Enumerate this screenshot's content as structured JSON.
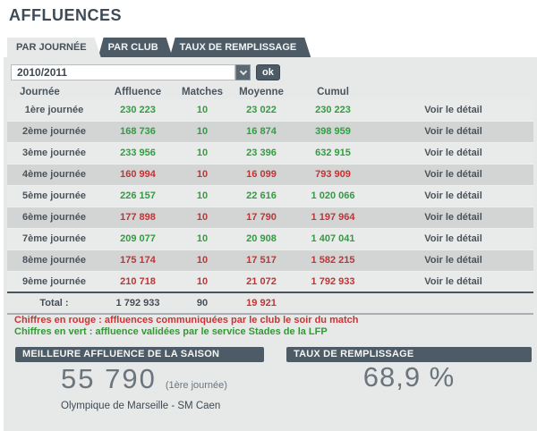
{
  "page": {
    "title": "AFFLUENCES"
  },
  "tabs": [
    {
      "label": "PAR JOURNÉE",
      "active": true
    },
    {
      "label": "PAR CLUB",
      "active": false
    },
    {
      "label": "TAUX DE REMPLISSAGE",
      "active": false
    }
  ],
  "filter": {
    "season_value": "2010/2011",
    "ok_label": "ok"
  },
  "table": {
    "headers": [
      "Journée",
      "Affluence",
      "Matches",
      "Moyenne",
      "Cumul"
    ],
    "detail_label": "Voir le détail",
    "rows": [
      {
        "journee": "1ère journée",
        "affluence": "230 223",
        "matches": "10",
        "moyenne": "23 022",
        "cumul": "230 223",
        "color": "green"
      },
      {
        "journee": "2ème journée",
        "affluence": "168 736",
        "matches": "10",
        "moyenne": "16 874",
        "cumul": "398 959",
        "color": "green"
      },
      {
        "journee": "3ème journée",
        "affluence": "233 956",
        "matches": "10",
        "moyenne": "23 396",
        "cumul": "632 915",
        "color": "green"
      },
      {
        "journee": "4ème journée",
        "affluence": "160 994",
        "matches": "10",
        "moyenne": "16 099",
        "cumul": "793 909",
        "color": "red"
      },
      {
        "journee": "5ème journée",
        "affluence": "226 157",
        "matches": "10",
        "moyenne": "22 616",
        "cumul": "1 020 066",
        "color": "green"
      },
      {
        "journee": "6ème journée",
        "affluence": "177 898",
        "matches": "10",
        "moyenne": "17 790",
        "cumul": "1 197 964",
        "color": "red"
      },
      {
        "journee": "7ème journée",
        "affluence": "209 077",
        "matches": "10",
        "moyenne": "20 908",
        "cumul": "1 407 041",
        "color": "green"
      },
      {
        "journee": "8ème journée",
        "affluence": "175 174",
        "matches": "10",
        "moyenne": "17 517",
        "cumul": "1 582 215",
        "color": "red"
      },
      {
        "journee": "9ème journée",
        "affluence": "210 718",
        "matches": "10",
        "moyenne": "21 072",
        "cumul": "1 792 933",
        "color": "red"
      }
    ],
    "total": {
      "label": "Total :",
      "affluence": "1 792 933",
      "matches": "90",
      "moyenne": "19 921",
      "moyenne_color": "red"
    }
  },
  "legend": {
    "red_note": "Chiffres en rouge : affluences communiquées par le club le soir du match",
    "green_note": "Chiffres en vert : affluence validées par le service Stades de la LFP"
  },
  "best_attendance": {
    "header": "MEILLEURE AFFLUENCE DE LA SAISON",
    "value": "55 790",
    "note": "(1ère journée)",
    "match": "Olympique de Marseille - SM Caen"
  },
  "fill_rate": {
    "header": "TAUX DE REMPLISSAGE",
    "value": "68,9 %"
  },
  "colors": {
    "accent_slate": "#4d5b66",
    "green": "#2f9e3f",
    "red": "#c43232",
    "panel": "#e7e9e9",
    "stripe": "#d3d5d5"
  }
}
